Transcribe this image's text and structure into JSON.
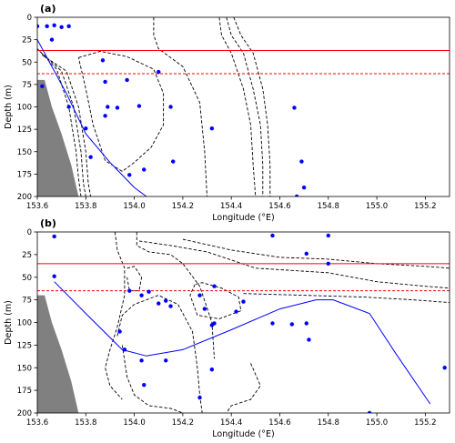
{
  "chart_data": [
    {
      "panel_label": "(a)",
      "type": "scatter",
      "xlabel": "Longitude (°E)",
      "ylabel": "Depth (m)",
      "xlim": [
        153.6,
        155.3
      ],
      "ylim": [
        200,
        0
      ],
      "y_inverted": true,
      "xticks": [
        "153.6",
        "153.8",
        "154.0",
        "154.2",
        "154.4",
        "154.6",
        "154.8",
        "155.0",
        "155.2"
      ],
      "yticks": [
        "0",
        "25",
        "50",
        "75",
        "100",
        "125",
        "150",
        "175",
        "200"
      ],
      "hlines": [
        {
          "y": 37,
          "style": "solid",
          "color": "#ff0000"
        },
        {
          "y": 63,
          "style": "dashed",
          "color": "#ff0000"
        }
      ],
      "blue_line": {
        "x": [
          153.6,
          153.72,
          153.8,
          153.9,
          154.0,
          154.05
        ],
        "y": [
          25,
          85,
          130,
          162,
          190,
          200
        ]
      },
      "bathymetry": {
        "x": [
          153.6,
          153.63,
          153.66,
          153.7,
          153.74,
          153.77,
          153.6
        ],
        "y": [
          70,
          70,
          100,
          130,
          165,
          200,
          200
        ]
      },
      "contours": [
        {
          "x": [
            153.6,
            153.68,
            153.73,
            153.76,
            153.77,
            153.78
          ],
          "y": [
            35,
            58,
            100,
            150,
            180,
            200
          ]
        },
        {
          "x": [
            153.61,
            153.7,
            153.75,
            153.78,
            153.79,
            153.8
          ],
          "y": [
            38,
            60,
            100,
            150,
            185,
            200
          ]
        },
        {
          "x": [
            153.62,
            153.72,
            153.77,
            153.8,
            153.81,
            153.82
          ],
          "y": [
            42,
            60,
            100,
            150,
            185,
            200
          ]
        },
        {
          "x": [
            153.77,
            153.86,
            153.97,
            154.08,
            154.12,
            154.12,
            154.07,
            154.0,
            153.95,
            153.88,
            153.83,
            153.8,
            153.77
          ],
          "y": [
            45,
            38,
            44,
            58,
            85,
            120,
            145,
            162,
            172,
            160,
            120,
            80,
            45
          ]
        },
        {
          "x": [
            154.08,
            154.08,
            154.1,
            154.2,
            154.27,
            154.29,
            154.3
          ],
          "y": [
            0,
            20,
            35,
            55,
            95,
            150,
            200
          ]
        },
        {
          "x": [
            154.35,
            154.36,
            154.4,
            154.45,
            154.48,
            154.49,
            154.5
          ],
          "y": [
            0,
            20,
            40,
            80,
            120,
            165,
            200
          ]
        },
        {
          "x": [
            154.38,
            154.4,
            154.45,
            154.49,
            154.52,
            154.53,
            154.53
          ],
          "y": [
            0,
            20,
            40,
            80,
            120,
            165,
            200
          ]
        },
        {
          "x": [
            154.41,
            154.44,
            154.49,
            154.53,
            154.55,
            154.56,
            154.56
          ],
          "y": [
            0,
            20,
            40,
            80,
            120,
            165,
            200
          ]
        }
      ],
      "points": [
        {
          "x": 153.6,
          "y": 10
        },
        {
          "x": 153.64,
          "y": 10
        },
        {
          "x": 153.67,
          "y": 9
        },
        {
          "x": 153.7,
          "y": 11
        },
        {
          "x": 153.73,
          "y": 10
        },
        {
          "x": 153.66,
          "y": 25
        },
        {
          "x": 153.62,
          "y": 77
        },
        {
          "x": 153.73,
          "y": 100
        },
        {
          "x": 153.8,
          "y": 124
        },
        {
          "x": 153.82,
          "y": 156
        },
        {
          "x": 153.87,
          "y": 48
        },
        {
          "x": 153.88,
          "y": 72
        },
        {
          "x": 153.88,
          "y": 110
        },
        {
          "x": 153.89,
          "y": 100
        },
        {
          "x": 153.93,
          "y": 101
        },
        {
          "x": 153.97,
          "y": 70
        },
        {
          "x": 154.02,
          "y": 99
        },
        {
          "x": 154.1,
          "y": 61
        },
        {
          "x": 154.04,
          "y": 170
        },
        {
          "x": 153.98,
          "y": 176
        },
        {
          "x": 154.15,
          "y": 100
        },
        {
          "x": 154.16,
          "y": 161
        },
        {
          "x": 154.32,
          "y": 124
        },
        {
          "x": 154.66,
          "y": 101
        },
        {
          "x": 154.69,
          "y": 161
        },
        {
          "x": 154.7,
          "y": 190
        },
        {
          "x": 154.67,
          "y": 200
        }
      ]
    },
    {
      "panel_label": "(b)",
      "type": "scatter",
      "xlabel": "Longitude (°E)",
      "ylabel": "Depth (m)",
      "xlim": [
        153.6,
        155.3
      ],
      "ylim": [
        200,
        0
      ],
      "y_inverted": true,
      "xticks": [
        "153.6",
        "153.8",
        "154.0",
        "154.2",
        "154.4",
        "154.6",
        "154.8",
        "155.0",
        "155.2"
      ],
      "yticks": [
        "0",
        "25",
        "50",
        "75",
        "100",
        "125",
        "150",
        "175",
        "200"
      ],
      "hlines": [
        {
          "y": 35,
          "style": "solid",
          "color": "#ff0000"
        },
        {
          "y": 65,
          "style": "dashed",
          "color": "#ff0000"
        }
      ],
      "blue_line": {
        "x": [
          153.67,
          153.8,
          153.95,
          154.05,
          154.2,
          154.4,
          154.6,
          154.75,
          154.82,
          154.97,
          155.08,
          155.22
        ],
        "y": [
          55,
          90,
          130,
          137,
          130,
          108,
          85,
          75,
          75,
          90,
          135,
          190
        ]
      },
      "bathymetry": {
        "x": [
          153.6,
          153.63,
          153.66,
          153.7,
          153.74,
          153.77,
          153.6
        ],
        "y": [
          70,
          70,
          100,
          130,
          165,
          200,
          200
        ]
      },
      "contours": [
        {
          "x": [
            153.92,
            153.93,
            153.96,
            153.96,
            153.93,
            153.9,
            153.88,
            153.9,
            153.95
          ],
          "y": [
            0,
            20,
            40,
            70,
            105,
            130,
            150,
            170,
            185
          ]
        },
        {
          "x": [
            154.01,
            154.01,
            154.06,
            154.15,
            154.2,
            154.27,
            154.32,
            154.33
          ],
          "y": [
            0,
            15,
            22,
            25,
            35,
            60,
            100,
            140
          ]
        },
        {
          "x": [
            154.25,
            154.23,
            154.26,
            154.35,
            154.44,
            154.43,
            154.36,
            154.28,
            154.25
          ],
          "y": [
            58,
            70,
            92,
            96,
            87,
            72,
            62,
            56,
            58
          ]
        },
        {
          "x": [
            153.93,
            153.95,
            154.0,
            154.1,
            154.18,
            154.24,
            154.26,
            154.27,
            154.28
          ],
          "y": [
            115,
            92,
            80,
            70,
            80,
            110,
            150,
            180,
            200
          ]
        },
        {
          "x": [
            153.95,
            153.97,
            154.0,
            154.06,
            154.15,
            154.2
          ],
          "y": [
            125,
            160,
            180,
            192,
            195,
            200
          ]
        },
        {
          "x": [
            153.97,
            154.0,
            154.03,
            154.02,
            153.98,
            153.97
          ],
          "y": [
            40,
            38,
            50,
            65,
            65,
            50
          ]
        },
        {
          "x": [
            154.02,
            154.15,
            154.3,
            154.5,
            154.8,
            155.0,
            155.2,
            155.3
          ],
          "y": [
            10,
            15,
            22,
            40,
            45,
            55,
            60,
            62
          ]
        },
        {
          "x": [
            154.2,
            154.4,
            154.6,
            154.8,
            155.0,
            155.2,
            155.3
          ],
          "y": [
            8,
            20,
            28,
            30,
            35,
            38,
            40
          ]
        },
        {
          "x": [
            154.45,
            154.7,
            154.95,
            155.15,
            155.3
          ],
          "y": [
            68,
            70,
            72,
            75,
            78
          ]
        },
        {
          "x": [
            154.48,
            154.52,
            154.48,
            154.4,
            154.38
          ],
          "y": [
            145,
            170,
            185,
            192,
            200
          ]
        }
      ],
      "points": [
        {
          "x": 153.67,
          "y": 5
        },
        {
          "x": 153.67,
          "y": 49
        },
        {
          "x": 153.94,
          "y": 110
        },
        {
          "x": 153.96,
          "y": 130
        },
        {
          "x": 153.98,
          "y": 65
        },
        {
          "x": 154.03,
          "y": 70
        },
        {
          "x": 154.06,
          "y": 66
        },
        {
          "x": 154.1,
          "y": 79
        },
        {
          "x": 154.13,
          "y": 76
        },
        {
          "x": 154.15,
          "y": 82
        },
        {
          "x": 154.03,
          "y": 142
        },
        {
          "x": 154.04,
          "y": 169
        },
        {
          "x": 154.13,
          "y": 142
        },
        {
          "x": 154.27,
          "y": 70
        },
        {
          "x": 154.29,
          "y": 85
        },
        {
          "x": 154.32,
          "y": 103
        },
        {
          "x": 154.33,
          "y": 101
        },
        {
          "x": 154.33,
          "y": 60
        },
        {
          "x": 154.27,
          "y": 183
        },
        {
          "x": 154.32,
          "y": 152
        },
        {
          "x": 154.42,
          "y": 88
        },
        {
          "x": 154.45,
          "y": 77
        },
        {
          "x": 154.57,
          "y": 4
        },
        {
          "x": 154.57,
          "y": 101
        },
        {
          "x": 154.65,
          "y": 102
        },
        {
          "x": 154.71,
          "y": 101
        },
        {
          "x": 154.72,
          "y": 119
        },
        {
          "x": 154.71,
          "y": 24
        },
        {
          "x": 154.8,
          "y": 4
        },
        {
          "x": 154.8,
          "y": 35
        },
        {
          "x": 154.97,
          "y": 200
        },
        {
          "x": 155.28,
          "y": 150
        }
      ]
    }
  ]
}
